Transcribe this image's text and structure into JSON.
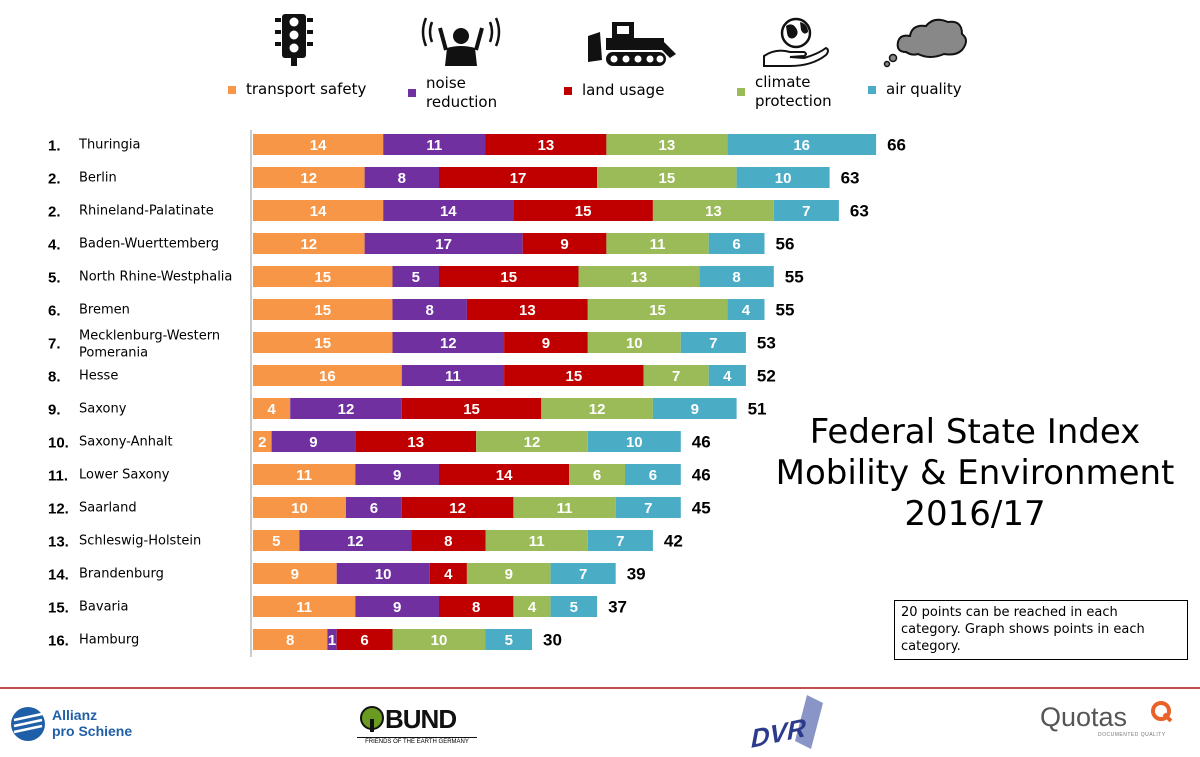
{
  "colors": {
    "transport_safety": "#f79646",
    "noise_reduction": "#7030a0",
    "land_usage": "#c00000",
    "climate_protection": "#9bbb59",
    "air_quality": "#4bacc6"
  },
  "legend": [
    {
      "key": "transport_safety",
      "label": "transport safety",
      "icon": "traffic-light-icon"
    },
    {
      "key": "noise_reduction",
      "label": "noise reduction",
      "icon": "noise-person-icon"
    },
    {
      "key": "land_usage",
      "label": "land usage",
      "icon": "bulldozer-icon"
    },
    {
      "key": "climate_protection",
      "label": "climate protection",
      "icon": "globe-hand-icon"
    },
    {
      "key": "air_quality",
      "label": "air quality",
      "icon": "smog-cloud-icon"
    }
  ],
  "chart_title_lines": [
    "Federal State Index",
    "Mobility & Environment",
    "2016/17"
  ],
  "note": "20 points can be reached in each category. Graph shows points in each category.",
  "logos": {
    "allianz": [
      "Allianz",
      "pro Schiene"
    ],
    "bund": "BUND",
    "bund_sub": "FRIENDS OF THE EARTH GERMANY",
    "dvr": "DVR",
    "quotas": "Quotas",
    "quotas_sub": "DOCUMENTED QUALITY"
  },
  "chart_data": {
    "type": "bar",
    "orientation": "horizontal",
    "stacked": true,
    "title": "Federal State Index Mobility & Environment 2016/17",
    "legend_position": "top",
    "grid": false,
    "categories": [
      "Thuringia",
      "Berlin",
      "Rhineland-Palatinate",
      "Baden-Wuerttemberg",
      "North Rhine-Westphalia",
      "Bremen",
      "Mecklenburg-Western Pomerania",
      "Hesse",
      "Saxony",
      "Saxony-Anhalt",
      "Lower Saxony",
      "Saarland",
      "Schleswig-Holstein",
      "Brandenburg",
      "Bavaria",
      "Hamburg"
    ],
    "ranks": [
      "1.",
      "2.",
      "2.",
      "4.",
      "5.",
      "6.",
      "7.",
      "8.",
      "9.",
      "10.",
      "11.",
      "12.",
      "13.",
      "14.",
      "15.",
      "16."
    ],
    "series": [
      {
        "name": "transport safety",
        "values": [
          14,
          12,
          14,
          12,
          15,
          15,
          15,
          16,
          4,
          2,
          11,
          10,
          5,
          9,
          11,
          8
        ]
      },
      {
        "name": "noise reduction",
        "values": [
          11,
          8,
          14,
          17,
          5,
          8,
          12,
          11,
          12,
          9,
          9,
          6,
          12,
          10,
          9,
          1
        ]
      },
      {
        "name": "land usage",
        "values": [
          13,
          17,
          15,
          9,
          15,
          13,
          9,
          15,
          15,
          13,
          14,
          12,
          8,
          4,
          8,
          6
        ]
      },
      {
        "name": "climate protection",
        "values": [
          13,
          15,
          13,
          11,
          13,
          15,
          10,
          7,
          12,
          12,
          6,
          11,
          11,
          9,
          4,
          10
        ]
      },
      {
        "name": "air quality",
        "values": [
          16,
          10,
          7,
          6,
          8,
          4,
          7,
          4,
          9,
          10,
          6,
          7,
          7,
          7,
          5,
          5
        ]
      }
    ],
    "totals": [
      66,
      63,
      63,
      56,
      55,
      55,
      53,
      52,
      51,
      46,
      46,
      45,
      42,
      39,
      37,
      30
    ]
  }
}
